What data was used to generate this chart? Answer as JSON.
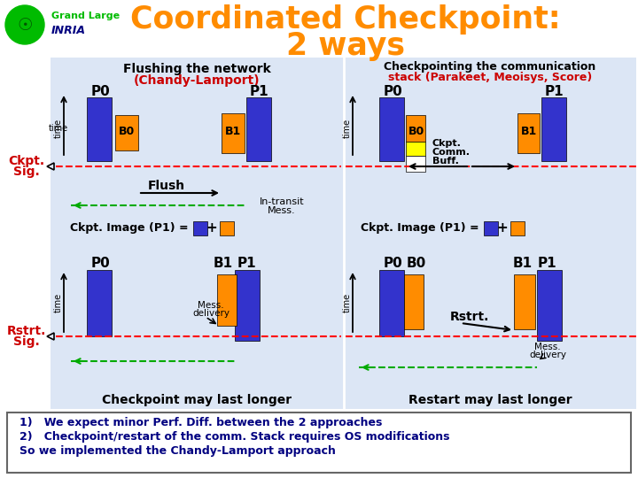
{
  "title_color": "#FF8C00",
  "bg_color": "#FFFFFF",
  "panel_bg": "#DCE6F5",
  "blue_color": "#3333CC",
  "orange_color": "#FF8C00",
  "yellow_color": "#FFFF00",
  "red_color": "#FF0000",
  "green_color": "#00AA00",
  "navy_color": "#000080",
  "black": "#000000",
  "crimson": "#CC0000",
  "white": "#FFFFFF",
  "green_logo": "#00BB00",
  "title_line1": "Coordinated Checkpoint:",
  "title_line2": "2 ways",
  "left_header1": "Flushing the network",
  "left_header2": "(Chandy-Lamport)",
  "right_header1": "Checkpointing the communication",
  "right_header2": "stack (Parakeet, Meoisys, Score)",
  "ckpt_image_text": "Ckpt. Image (P1) =",
  "checkpoint_may": "Checkpoint may last longer",
  "restart_may": "Restart may last longer",
  "bottom_text1": "1)   We expect minor Perf. Diff. between the 2 approaches",
  "bottom_text2": "2)   Checkpoint/restart of the comm. Stack requires OS modifications",
  "bottom_text3": "So we implemented the Chandy-Lamport approach"
}
